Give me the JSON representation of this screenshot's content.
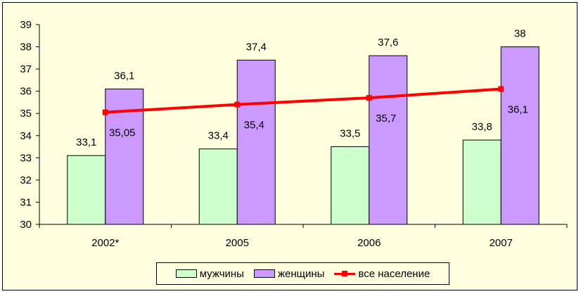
{
  "chart_data": {
    "type": "bar",
    "categories": [
      "2002*",
      "2005",
      "2006",
      "2007"
    ],
    "series": [
      {
        "name": "мужчины",
        "kind": "bar",
        "color": "#ccffcc",
        "values": [
          33.1,
          33.4,
          33.5,
          33.8
        ],
        "labels": [
          "33,1",
          "33,4",
          "33,5",
          "33,8"
        ]
      },
      {
        "name": "женщины",
        "kind": "bar",
        "color": "#cc99ff",
        "values": [
          36.1,
          37.4,
          37.6,
          38
        ],
        "labels": [
          "36,1",
          "37,4",
          "37,6",
          "38"
        ]
      },
      {
        "name": "все население",
        "kind": "line",
        "color": "#ff0000",
        "values": [
          35.05,
          35.4,
          35.7,
          36.1
        ],
        "labels": [
          "35,05",
          "35,4",
          "35,7",
          "36,1"
        ]
      }
    ],
    "ylim": [
      30,
      39
    ],
    "yticks": [
      "30",
      "31",
      "32",
      "33",
      "34",
      "35",
      "36",
      "37",
      "38",
      "39"
    ],
    "grid": false,
    "legend_position": "bottom",
    "background": "#ffffe0"
  }
}
